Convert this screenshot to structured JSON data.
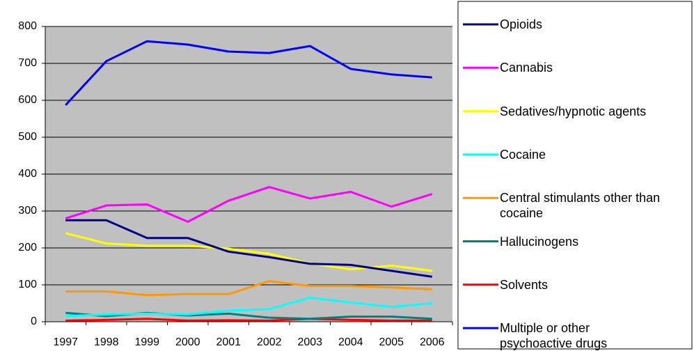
{
  "chart_data": {
    "type": "line",
    "categories": [
      "1997",
      "1998",
      "1999",
      "2000",
      "2001",
      "2002",
      "2003",
      "2004",
      "2005",
      "2006"
    ],
    "ylim": [
      0,
      800
    ],
    "yticks": [
      0,
      100,
      200,
      300,
      400,
      500,
      600,
      700,
      800
    ],
    "grid": true,
    "series": [
      {
        "name": "Opioids",
        "color": "#000080",
        "values": [
          275,
          275,
          227,
          227,
          190,
          175,
          157,
          154,
          138,
          122
        ]
      },
      {
        "name": "Cannabis",
        "color": "#ff00ff",
        "values": [
          280,
          315,
          318,
          271,
          328,
          365,
          334,
          352,
          312,
          346
        ]
      },
      {
        "name": "Sedatives/hypnotic agents",
        "color": "#ffff00",
        "values": [
          240,
          212,
          206,
          206,
          198,
          184,
          158,
          142,
          152,
          138
        ]
      },
      {
        "name": "Cocaine",
        "color": "#00ffff",
        "values": [
          15,
          20,
          22,
          20,
          30,
          34,
          65,
          52,
          40,
          50
        ]
      },
      {
        "name": "Central stimulants other than cocaine",
        "color": "#ff9900",
        "values": [
          82,
          82,
          72,
          75,
          75,
          110,
          97,
          97,
          93,
          88
        ]
      },
      {
        "name": "Hallucinogens",
        "color": "#008080",
        "values": [
          24,
          15,
          24,
          17,
          22,
          11,
          8,
          14,
          14,
          8
        ]
      },
      {
        "name": "Solvents",
        "color": "#ff0000",
        "values": [
          3,
          5,
          8,
          3,
          4,
          3,
          8,
          5,
          3,
          3
        ]
      },
      {
        "name": "Multiple or other psychoactive drugs",
        "color": "#0000ff",
        "values": [
          587,
          706,
          760,
          751,
          732,
          728,
          747,
          685,
          670,
          662
        ]
      }
    ]
  }
}
